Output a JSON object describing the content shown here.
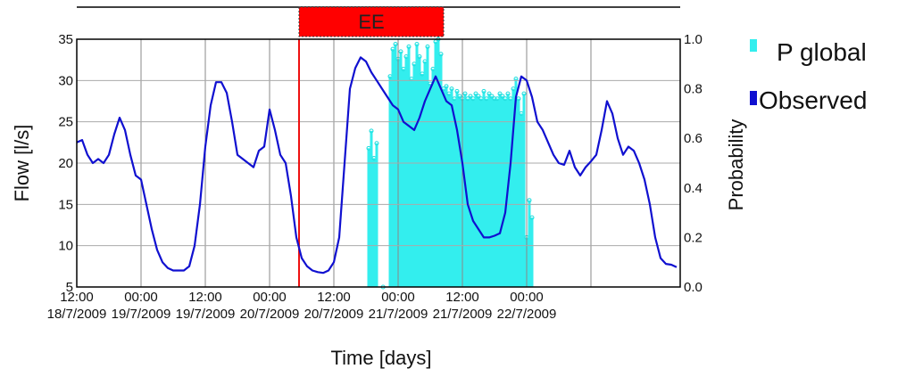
{
  "chart_data": {
    "type": "line",
    "xlabel": "Time [days]",
    "ylabel": "Flow [l/s]",
    "y2label": "Probability",
    "ylim": [
      5,
      35
    ],
    "y2lim": [
      0.0,
      1.0
    ],
    "yticks": [
      5,
      10,
      15,
      20,
      25,
      30,
      35
    ],
    "y2ticks": [
      "0.0",
      "0.2",
      "0.4",
      "0.6",
      "0.8",
      "1.0"
    ],
    "xlim": [
      0,
      108
    ],
    "xtick_hours": [
      0,
      12,
      24,
      36,
      48,
      60,
      72,
      84,
      96,
      108
    ],
    "xtick_labels": [
      [
        "12:00",
        "18/7/2009"
      ],
      [
        "00:00",
        "19/7/2009"
      ],
      [
        "12:00",
        "19/7/2009"
      ],
      [
        "00:00",
        "20/7/2009"
      ],
      [
        "12:00",
        "20/7/2009"
      ],
      [
        "00:00",
        "21/7/2009"
      ],
      [
        "12:00",
        "21/7/2009"
      ],
      [
        "00:00",
        "22/7/2009"
      ]
    ],
    "xtick_label_hours": [
      0,
      12,
      24,
      36,
      48,
      60,
      72,
      84
    ],
    "event": {
      "label": "EE",
      "start_hour": 41.5,
      "end_hour": 68.5,
      "color": "#ff0000"
    },
    "marker_line_hour": 41.5,
    "legend_position": "right",
    "series": [
      {
        "name": "Observed",
        "type": "line",
        "axis": "left",
        "color": "#1010d0",
        "points": [
          [
            0,
            22.5
          ],
          [
            1,
            22.8
          ],
          [
            2,
            21
          ],
          [
            3,
            20
          ],
          [
            4,
            20.5
          ],
          [
            5,
            20
          ],
          [
            6,
            21
          ],
          [
            7,
            23.5
          ],
          [
            8,
            25.5
          ],
          [
            9,
            24
          ],
          [
            10,
            21
          ],
          [
            11,
            18.5
          ],
          [
            12,
            18
          ],
          [
            13,
            15
          ],
          [
            14,
            12
          ],
          [
            15,
            9.5
          ],
          [
            16,
            8
          ],
          [
            17,
            7.3
          ],
          [
            18,
            7
          ],
          [
            19,
            7
          ],
          [
            20,
            7
          ],
          [
            21,
            7.5
          ],
          [
            22,
            10
          ],
          [
            23,
            15
          ],
          [
            24,
            22
          ],
          [
            25,
            27
          ],
          [
            26,
            29.8
          ],
          [
            27,
            29.8
          ],
          [
            28,
            28.5
          ],
          [
            29,
            25
          ],
          [
            30,
            21
          ],
          [
            31,
            20.5
          ],
          [
            32,
            20
          ],
          [
            33,
            19.5
          ],
          [
            34,
            21.5
          ],
          [
            35,
            22
          ],
          [
            36,
            26.5
          ],
          [
            37,
            24
          ],
          [
            38,
            21
          ],
          [
            39,
            20
          ],
          [
            40,
            16
          ],
          [
            41,
            11
          ],
          [
            42,
            8.5
          ],
          [
            43,
            7.5
          ],
          [
            44,
            7
          ],
          [
            45,
            6.8
          ],
          [
            46,
            6.7
          ],
          [
            47,
            7
          ],
          [
            48,
            8
          ],
          [
            49,
            11
          ],
          [
            50,
            20
          ],
          [
            51,
            29
          ],
          [
            52,
            31.5
          ],
          [
            53,
            32.8
          ],
          [
            54,
            32.3
          ],
          [
            55,
            31
          ],
          [
            56,
            30
          ],
          [
            57,
            29
          ],
          [
            58,
            28
          ],
          [
            59,
            27
          ],
          [
            60,
            26.5
          ],
          [
            61,
            25
          ],
          [
            62,
            24.5
          ],
          [
            63,
            24
          ],
          [
            64,
            25.5
          ],
          [
            65,
            27.5
          ],
          [
            66,
            29
          ],
          [
            67,
            30.5
          ],
          [
            68,
            29
          ],
          [
            69,
            27.5
          ],
          [
            70,
            27
          ],
          [
            71,
            24
          ],
          [
            72,
            20
          ],
          [
            73,
            15
          ],
          [
            74,
            13
          ],
          [
            75,
            12
          ],
          [
            76,
            11
          ],
          [
            77,
            11
          ],
          [
            78,
            11.2
          ],
          [
            79,
            11.5
          ],
          [
            80,
            14
          ],
          [
            81,
            20
          ],
          [
            82,
            28
          ],
          [
            83,
            30.5
          ],
          [
            84,
            30
          ],
          [
            85,
            28
          ],
          [
            86,
            25
          ],
          [
            87,
            24
          ],
          [
            88,
            22.5
          ],
          [
            89,
            21
          ],
          [
            90,
            20
          ],
          [
            91,
            19.8
          ],
          [
            92,
            21.5
          ],
          [
            93,
            19.5
          ],
          [
            94,
            18.5
          ],
          [
            95,
            19.5
          ],
          [
            96,
            20.2
          ],
          [
            97,
            21
          ],
          [
            98,
            24
          ],
          [
            99,
            27.5
          ],
          [
            100,
            26
          ],
          [
            101,
            23
          ],
          [
            102,
            21
          ],
          [
            103,
            22
          ],
          [
            104,
            21.5
          ],
          [
            105,
            20
          ],
          [
            106,
            18
          ],
          [
            107,
            15
          ],
          [
            108,
            11
          ],
          [
            109,
            8.5
          ],
          [
            110,
            7.8
          ],
          [
            111,
            7.7
          ],
          [
            112,
            7.4
          ]
        ]
      },
      {
        "name": "P global",
        "type": "bar",
        "axis": "right",
        "color": "#33eeee",
        "points": [
          [
            54.5,
            0.56
          ],
          [
            55.0,
            0.63
          ],
          [
            55.5,
            0.52
          ],
          [
            56.0,
            0.58
          ],
          [
            57.2,
            0.0
          ],
          [
            58.5,
            0.85
          ],
          [
            59.0,
            0.96
          ],
          [
            59.5,
            0.98
          ],
          [
            60.0,
            0.92
          ],
          [
            60.5,
            0.95
          ],
          [
            61.0,
            0.88
          ],
          [
            61.5,
            0.93
          ],
          [
            62.0,
            0.97
          ],
          [
            62.5,
            0.84
          ],
          [
            63.0,
            0.9
          ],
          [
            63.5,
            0.98
          ],
          [
            64.0,
            0.93
          ],
          [
            64.5,
            0.86
          ],
          [
            65.0,
            0.91
          ],
          [
            65.5,
            0.97
          ],
          [
            66.0,
            0.82
          ],
          [
            66.5,
            0.88
          ],
          [
            67.0,
            0.99
          ],
          [
            67.5,
            1.0
          ],
          [
            68.0,
            0.94
          ],
          [
            68.5,
            0.8
          ],
          [
            69.0,
            0.81
          ],
          [
            69.5,
            0.78
          ],
          [
            70.0,
            0.8
          ],
          [
            70.5,
            0.76
          ],
          [
            71.0,
            0.79
          ],
          [
            71.5,
            0.77
          ],
          [
            72.0,
            0.76
          ],
          [
            72.5,
            0.78
          ],
          [
            73.0,
            0.76
          ],
          [
            73.5,
            0.77
          ],
          [
            74.0,
            0.76
          ],
          [
            74.5,
            0.78
          ],
          [
            75.0,
            0.77
          ],
          [
            75.5,
            0.76
          ],
          [
            76.0,
            0.79
          ],
          [
            76.5,
            0.76
          ],
          [
            77.0,
            0.78
          ],
          [
            77.5,
            0.77
          ],
          [
            78.0,
            0.76
          ],
          [
            78.5,
            0.76
          ],
          [
            79.0,
            0.78
          ],
          [
            79.5,
            0.77
          ],
          [
            80.0,
            0.76
          ],
          [
            80.5,
            0.78
          ],
          [
            81.0,
            0.76
          ],
          [
            81.5,
            0.8
          ],
          [
            82.0,
            0.84
          ],
          [
            82.5,
            0.76
          ],
          [
            83.0,
            0.7
          ],
          [
            83.5,
            0.78
          ],
          [
            84.0,
            0.2
          ],
          [
            84.5,
            0.35
          ],
          [
            85.0,
            0.28
          ]
        ]
      }
    ]
  }
}
